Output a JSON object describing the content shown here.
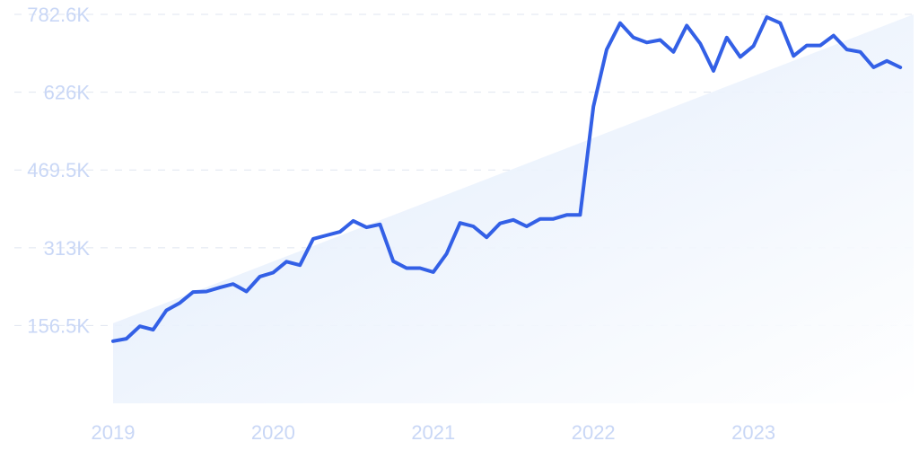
{
  "chart_data": {
    "type": "line",
    "title": "",
    "xlabel": "",
    "ylabel": "",
    "x_tick_labels": [
      "2019",
      "2020",
      "2021",
      "2022",
      "2023"
    ],
    "y_tick_labels": [
      "156.5K",
      "313K",
      "469.5K",
      "626K",
      "782.6K"
    ],
    "x_ticks": [
      2019,
      2020,
      2021,
      2022,
      2023
    ],
    "y_ticks": [
      156500,
      313000,
      469500,
      626000,
      782600
    ],
    "xlim": [
      2019.0,
      2024.0
    ],
    "ylim": [
      0,
      782600
    ],
    "grid": true,
    "legend": "none",
    "colors": {
      "line": "#3360e6",
      "fill": "#dbe8fb",
      "tick": "#c9d7f6",
      "grid": "#dfe5f0"
    },
    "series": [
      {
        "x": [
          2019.0,
          2019.083,
          2019.167,
          2019.25,
          2019.333,
          2019.417,
          2019.5,
          2019.583,
          2019.667,
          2019.75,
          2019.833,
          2019.917,
          2020.0,
          2020.083,
          2020.167,
          2020.25,
          2020.333,
          2020.417,
          2020.5,
          2020.583,
          2020.667,
          2020.75,
          2020.833,
          2020.917,
          2021.0,
          2021.083,
          2021.167,
          2021.25,
          2021.333,
          2021.417,
          2021.5,
          2021.583,
          2021.667,
          2021.75,
          2021.833,
          2021.917,
          2022.0,
          2022.083,
          2022.167,
          2022.25,
          2022.333,
          2022.417,
          2022.5,
          2022.583,
          2022.667,
          2022.75,
          2022.833,
          2022.917,
          2023.0,
          2023.083,
          2023.167,
          2023.25,
          2023.333,
          2023.417,
          2023.5,
          2023.583,
          2023.667,
          2023.75,
          2023.833,
          2023.917
        ],
        "values": [
          125000,
          130000,
          155000,
          148000,
          187000,
          202000,
          224000,
          225000,
          233000,
          240000,
          225000,
          255000,
          263000,
          285000,
          278000,
          331000,
          338000,
          345000,
          367000,
          354000,
          360000,
          286000,
          272000,
          272000,
          264000,
          301000,
          363000,
          356000,
          334000,
          362000,
          369000,
          356000,
          371000,
          371000,
          379000,
          379000,
          597000,
          712000,
          765000,
          736000,
          726000,
          731000,
          707000,
          760000,
          724000,
          669000,
          736000,
          697000,
          719000,
          777000,
          765000,
          699000,
          720000,
          720000,
          740000,
          712000,
          707000,
          676000,
          689000,
          676000
        ]
      }
    ]
  }
}
